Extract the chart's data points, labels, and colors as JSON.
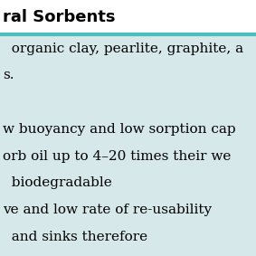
{
  "header_bg": "#ffffff",
  "header_text": "ral Sorbents",
  "header_text_color": "#000000",
  "header_fontsize": 13,
  "header_bold": true,
  "divider_color": "#4bbfbf",
  "divider_thickness": 3,
  "body_bg": "#d6e8e9",
  "body_text_color": "#000000",
  "body_fontsize": 11,
  "body_lines": [
    "  organic clay, pearlite, graphite, a",
    "s.",
    "",
    "w buoyancy and low sorption cap",
    "orb oil up to 4–20 times their we",
    "  biodegradable",
    "ve and low rate of re-usability",
    "  and sinks therefore"
  ],
  "fig_width": 2.83,
  "fig_height": 2.83,
  "dpi": 100
}
